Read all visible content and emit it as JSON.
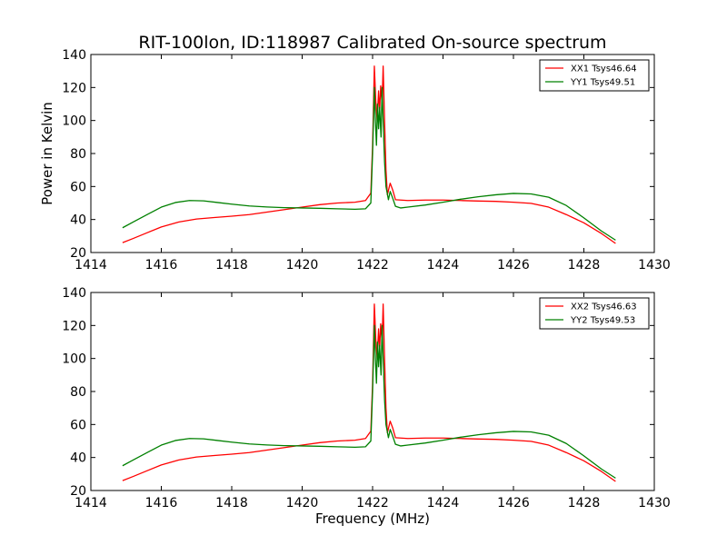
{
  "title": "RIT-100lon, ID:118987 Calibrated On-source spectrum",
  "colors": {
    "red": "#ff0000",
    "green": "#008000"
  },
  "chart_data": [
    {
      "type": "line",
      "ylabel": "Power in Kelvin",
      "xlabel": "",
      "xlim": [
        1414,
        1430
      ],
      "ylim": [
        20,
        140
      ],
      "xticks": [
        "1414",
        "1416",
        "1418",
        "1420",
        "1422",
        "1424",
        "1426",
        "1428",
        "1430"
      ],
      "yticks": [
        "20",
        "40",
        "60",
        "80",
        "100",
        "120",
        "140"
      ],
      "legend_position": "top-right",
      "grid": false,
      "series": [
        {
          "name": "XX1 Tsys46.64",
          "color": "#ff0000",
          "points": [
            [
              1414.9,
              26
            ],
            [
              1415.2,
              28.5
            ],
            [
              1415.6,
              32
            ],
            [
              1416.0,
              35.5
            ],
            [
              1416.5,
              38.5
            ],
            [
              1417.0,
              40.3
            ],
            [
              1417.5,
              41.2
            ],
            [
              1418.0,
              42
            ],
            [
              1418.5,
              43
            ],
            [
              1419.0,
              44.5
            ],
            [
              1419.5,
              46
            ],
            [
              1420.0,
              47.5
            ],
            [
              1420.5,
              49
            ],
            [
              1421.0,
              50
            ],
            [
              1421.5,
              50.5
            ],
            [
              1421.8,
              51.5
            ],
            [
              1421.95,
              56
            ],
            [
              1422.0,
              85
            ],
            [
              1422.05,
              133
            ],
            [
              1422.09,
              112
            ],
            [
              1422.13,
              100
            ],
            [
              1422.17,
              118
            ],
            [
              1422.2,
              105
            ],
            [
              1422.23,
              121
            ],
            [
              1422.27,
              110
            ],
            [
              1422.3,
              133
            ],
            [
              1422.34,
              100
            ],
            [
              1422.38,
              70
            ],
            [
              1422.42,
              55
            ],
            [
              1422.5,
              62
            ],
            [
              1422.57,
              58
            ],
            [
              1422.65,
              52
            ],
            [
              1423.0,
              51.5
            ],
            [
              1423.5,
              51.8
            ],
            [
              1424.0,
              51.8
            ],
            [
              1424.5,
              51.5
            ],
            [
              1425.0,
              51.2
            ],
            [
              1425.5,
              51
            ],
            [
              1426.0,
              50.5
            ],
            [
              1426.5,
              49.8
            ],
            [
              1427.0,
              47.5
            ],
            [
              1427.5,
              43
            ],
            [
              1428.0,
              38
            ],
            [
              1428.5,
              31.5
            ],
            [
              1428.9,
              25.5
            ]
          ]
        },
        {
          "name": "YY1 Tsys49.51",
          "color": "#008000",
          "points": [
            [
              1414.9,
              35
            ],
            [
              1415.2,
              38.5
            ],
            [
              1415.6,
              43
            ],
            [
              1416.0,
              47.5
            ],
            [
              1416.4,
              50.3
            ],
            [
              1416.8,
              51.5
            ],
            [
              1417.2,
              51.3
            ],
            [
              1417.6,
              50.3
            ],
            [
              1418.0,
              49.3
            ],
            [
              1418.5,
              48.2
            ],
            [
              1419.0,
              47.6
            ],
            [
              1419.5,
              47.2
            ],
            [
              1420.0,
              47
            ],
            [
              1420.5,
              46.8
            ],
            [
              1421.0,
              46.5
            ],
            [
              1421.5,
              46.2
            ],
            [
              1421.8,
              46.5
            ],
            [
              1421.95,
              50
            ],
            [
              1422.0,
              80
            ],
            [
              1422.05,
              120
            ],
            [
              1422.08,
              100
            ],
            [
              1422.11,
              85
            ],
            [
              1422.14,
              110
            ],
            [
              1422.17,
              95
            ],
            [
              1422.2,
              108
            ],
            [
              1422.24,
              90
            ],
            [
              1422.27,
              120
            ],
            [
              1422.3,
              100
            ],
            [
              1422.34,
              75
            ],
            [
              1422.38,
              60
            ],
            [
              1422.45,
              52
            ],
            [
              1422.5,
              57
            ],
            [
              1422.57,
              53
            ],
            [
              1422.65,
              48
            ],
            [
              1422.8,
              47
            ],
            [
              1423.0,
              47.5
            ],
            [
              1423.5,
              48.8
            ],
            [
              1424.0,
              50.5
            ],
            [
              1424.5,
              52.3
            ],
            [
              1425.0,
              53.8
            ],
            [
              1425.5,
              55
            ],
            [
              1426.0,
              55.8
            ],
            [
              1426.5,
              55.5
            ],
            [
              1427.0,
              53.5
            ],
            [
              1427.5,
              48.5
            ],
            [
              1428.0,
              41
            ],
            [
              1428.5,
              33
            ],
            [
              1428.9,
              27.5
            ]
          ]
        }
      ]
    },
    {
      "type": "line",
      "ylabel": "",
      "xlabel": "Frequency (MHz)",
      "xlim": [
        1414,
        1430
      ],
      "ylim": [
        20,
        140
      ],
      "xticks": [
        "1414",
        "1416",
        "1418",
        "1420",
        "1422",
        "1424",
        "1426",
        "1428",
        "1430"
      ],
      "yticks": [
        "20",
        "40",
        "60",
        "80",
        "100",
        "120",
        "140"
      ],
      "legend_position": "top-right",
      "grid": false,
      "series": [
        {
          "name": "XX2 Tsys46.63",
          "color": "#ff0000",
          "points": [
            [
              1414.9,
              26
            ],
            [
              1415.2,
              28.5
            ],
            [
              1415.6,
              32
            ],
            [
              1416.0,
              35.5
            ],
            [
              1416.5,
              38.5
            ],
            [
              1417.0,
              40.3
            ],
            [
              1417.5,
              41.2
            ],
            [
              1418.0,
              42
            ],
            [
              1418.5,
              43
            ],
            [
              1419.0,
              44.5
            ],
            [
              1419.5,
              46
            ],
            [
              1420.0,
              47.5
            ],
            [
              1420.5,
              49
            ],
            [
              1421.0,
              50
            ],
            [
              1421.5,
              50.5
            ],
            [
              1421.8,
              51.5
            ],
            [
              1421.95,
              56
            ],
            [
              1422.0,
              85
            ],
            [
              1422.05,
              133
            ],
            [
              1422.09,
              112
            ],
            [
              1422.13,
              100
            ],
            [
              1422.17,
              118
            ],
            [
              1422.2,
              105
            ],
            [
              1422.23,
              121
            ],
            [
              1422.27,
              110
            ],
            [
              1422.3,
              133
            ],
            [
              1422.34,
              100
            ],
            [
              1422.38,
              70
            ],
            [
              1422.42,
              55
            ],
            [
              1422.5,
              62
            ],
            [
              1422.57,
              58
            ],
            [
              1422.65,
              52
            ],
            [
              1423.0,
              51.5
            ],
            [
              1423.5,
              51.8
            ],
            [
              1424.0,
              51.8
            ],
            [
              1424.5,
              51.5
            ],
            [
              1425.0,
              51.2
            ],
            [
              1425.5,
              51
            ],
            [
              1426.0,
              50.5
            ],
            [
              1426.5,
              49.8
            ],
            [
              1427.0,
              47.5
            ],
            [
              1427.5,
              43
            ],
            [
              1428.0,
              38
            ],
            [
              1428.5,
              31.5
            ],
            [
              1428.9,
              25.5
            ]
          ]
        },
        {
          "name": "YY2 Tsys49.53",
          "color": "#008000",
          "points": [
            [
              1414.9,
              35
            ],
            [
              1415.2,
              38.5
            ],
            [
              1415.6,
              43
            ],
            [
              1416.0,
              47.5
            ],
            [
              1416.4,
              50.3
            ],
            [
              1416.8,
              51.5
            ],
            [
              1417.2,
              51.3
            ],
            [
              1417.6,
              50.3
            ],
            [
              1418.0,
              49.3
            ],
            [
              1418.5,
              48.2
            ],
            [
              1419.0,
              47.6
            ],
            [
              1419.5,
              47.2
            ],
            [
              1420.0,
              47
            ],
            [
              1420.5,
              46.8
            ],
            [
              1421.0,
              46.5
            ],
            [
              1421.5,
              46.2
            ],
            [
              1421.8,
              46.5
            ],
            [
              1421.95,
              50
            ],
            [
              1422.0,
              80
            ],
            [
              1422.05,
              120
            ],
            [
              1422.08,
              100
            ],
            [
              1422.11,
              85
            ],
            [
              1422.14,
              110
            ],
            [
              1422.17,
              95
            ],
            [
              1422.2,
              108
            ],
            [
              1422.24,
              90
            ],
            [
              1422.27,
              120
            ],
            [
              1422.3,
              100
            ],
            [
              1422.34,
              75
            ],
            [
              1422.38,
              60
            ],
            [
              1422.45,
              52
            ],
            [
              1422.5,
              57
            ],
            [
              1422.57,
              53
            ],
            [
              1422.65,
              48
            ],
            [
              1422.8,
              47
            ],
            [
              1423.0,
              47.5
            ],
            [
              1423.5,
              48.8
            ],
            [
              1424.0,
              50.5
            ],
            [
              1424.5,
              52.3
            ],
            [
              1425.0,
              53.8
            ],
            [
              1425.5,
              55
            ],
            [
              1426.0,
              55.8
            ],
            [
              1426.5,
              55.5
            ],
            [
              1427.0,
              53.5
            ],
            [
              1427.5,
              48.5
            ],
            [
              1428.0,
              41
            ],
            [
              1428.5,
              33
            ],
            [
              1428.9,
              27.5
            ]
          ]
        }
      ]
    }
  ]
}
